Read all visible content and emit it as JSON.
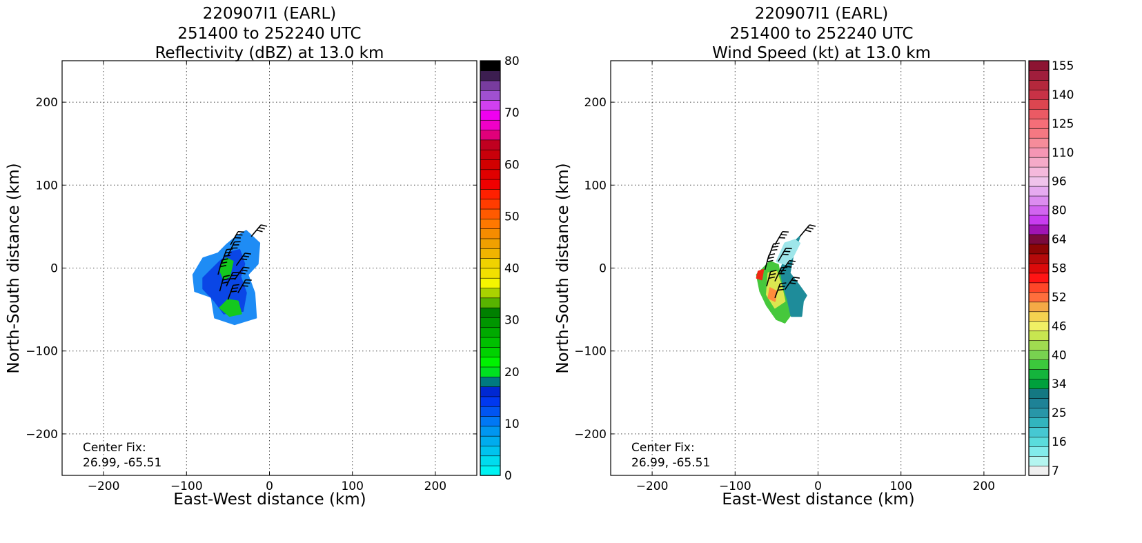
{
  "chart_data": [
    {
      "type": "heatmap",
      "title_lines": [
        "220907I1 (EARL)",
        "251400 to 252240 UTC",
        "Reflectivity (dBZ) at 13.0 km"
      ],
      "xlabel": "East-West distance (km)",
      "ylabel": "North-South distance (km)",
      "xlim": [
        -250,
        250
      ],
      "ylim": [
        -250,
        250
      ],
      "xticks": [
        -200,
        -100,
        0,
        100,
        200
      ],
      "yticks": [
        -200,
        -100,
        0,
        100,
        200
      ],
      "grid": true,
      "annotation": [
        "Center Fix:",
        "26.99, -65.51"
      ],
      "colorbar": {
        "min": 0,
        "max": 80,
        "tick_values": [
          0,
          10,
          20,
          30,
          40,
          50,
          60,
          70,
          80
        ],
        "colors": [
          "#00f2f2",
          "#00dcee",
          "#00c3ee",
          "#00acee",
          "#0096f0",
          "#0078f5",
          "#0055f2",
          "#0038f0",
          "#0028d2",
          "#007a80",
          "#00e020",
          "#00f200",
          "#00d200",
          "#00c000",
          "#00aa00",
          "#009600",
          "#008000",
          "#58b400",
          "#aad200",
          "#f5f500",
          "#f2e000",
          "#f0d200",
          "#f0b400",
          "#f0a000",
          "#f58c00",
          "#ff7800",
          "#ff5a00",
          "#ff3c00",
          "#ff2000",
          "#f00000",
          "#e00000",
          "#d20000",
          "#c8000a",
          "#c00020",
          "#e0007a",
          "#f000c8",
          "#f000f0",
          "#d040f0",
          "#a050d0",
          "#783c9e",
          "#3c1e50",
          "#000000"
        ]
      },
      "series": [
        {
          "name": "low",
          "color": "#1e8cf5",
          "points": [
            [
              -40,
              38
            ],
            [
              -28,
              45
            ],
            [
              -12,
              30
            ],
            [
              -14,
              5
            ],
            [
              -26,
              -8
            ],
            [
              -18,
              -30
            ],
            [
              -16,
              -60
            ],
            [
              -42,
              -68
            ],
            [
              -66,
              -60
            ],
            [
              -70,
              -35
            ],
            [
              -90,
              -28
            ],
            [
              -92,
              -8
            ],
            [
              -80,
              12
            ],
            [
              -62,
              18
            ],
            [
              -52,
              28
            ]
          ]
        },
        {
          "name": "mid",
          "color": "#0a46e6",
          "points": [
            [
              -45,
              20
            ],
            [
              -36,
              22
            ],
            [
              -30,
              5
            ],
            [
              -35,
              -10
            ],
            [
              -28,
              -30
            ],
            [
              -32,
              -52
            ],
            [
              -55,
              -55
            ],
            [
              -66,
              -40
            ],
            [
              -80,
              -25
            ],
            [
              -80,
              -12
            ],
            [
              -68,
              0
            ],
            [
              -60,
              8
            ]
          ]
        },
        {
          "name": "green",
          "color": "#14c81e",
          "points": [
            [
              -52,
              12
            ],
            [
              -44,
              8
            ],
            [
              -48,
              -10
            ],
            [
              -55,
              -14
            ],
            [
              -60,
              -2
            ],
            [
              -56,
              8
            ]
          ]
        },
        {
          "name": "green",
          "color": "#14c81e",
          "points": [
            [
              -50,
              -38
            ],
            [
              -38,
              -40
            ],
            [
              -34,
              -55
            ],
            [
              -48,
              -58
            ],
            [
              -60,
              -48
            ]
          ]
        }
      ],
      "barbs": [
        {
          "x": -47,
          "y": 28,
          "deg": 30
        },
        {
          "x": -50,
          "y": 15,
          "deg": 25
        },
        {
          "x": -58,
          "y": 5,
          "deg": 20
        },
        {
          "x": -40,
          "y": 3,
          "deg": 35
        },
        {
          "x": -62,
          "y": -8,
          "deg": 15
        },
        {
          "x": -42,
          "y": -14,
          "deg": 35
        },
        {
          "x": -52,
          "y": -22,
          "deg": 25
        },
        {
          "x": -60,
          "y": -28,
          "deg": 15
        },
        {
          "x": -38,
          "y": -30,
          "deg": 30
        },
        {
          "x": -50,
          "y": -38,
          "deg": 20
        },
        {
          "x": -22,
          "y": 38,
          "deg": 40
        }
      ]
    },
    {
      "type": "heatmap",
      "title_lines": [
        "220907I1 (EARL)",
        "251400 to 252240 UTC",
        "Wind Speed (kt) at 13.0 km"
      ],
      "xlabel": "East-West distance (km)",
      "ylabel": "North-South distance (km)",
      "xlim": [
        -250,
        250
      ],
      "ylim": [
        -250,
        250
      ],
      "xticks": [
        -200,
        -100,
        0,
        100,
        200
      ],
      "yticks": [
        -200,
        -100,
        0,
        100,
        200
      ],
      "grid": true,
      "annotation": [
        "Center Fix:",
        "26.99, -65.51"
      ],
      "colorbar": {
        "tick_labels": [
          "7",
          "16",
          "25",
          "34",
          "40",
          "46",
          "52",
          "58",
          "64",
          "80",
          "96",
          "110",
          "125",
          "140",
          "155"
        ],
        "tick_bins": [
          0,
          3,
          6,
          9,
          12,
          15,
          18,
          21,
          24,
          27,
          30,
          33,
          36,
          39,
          42
        ],
        "colors": [
          "#f0f0f0",
          "#b4f5f0",
          "#82ebeb",
          "#5adcdc",
          "#46c8d2",
          "#32b4be",
          "#2896a8",
          "#1e8296",
          "#147882",
          "#00a03c",
          "#14b43c",
          "#3cc83c",
          "#78d250",
          "#a0dc50",
          "#c8e650",
          "#f0f064",
          "#f5d250",
          "#f5aa46",
          "#ff6e3c",
          "#ff4628",
          "#ff1414",
          "#dc0a0a",
          "#b40a0a",
          "#8c0505",
          "#7a0a3c",
          "#a014b4",
          "#c83cf0",
          "#d264f0",
          "#dc8cf0",
          "#e6aaf0",
          "#f0c3eb",
          "#f5b9dc",
          "#f5aac8",
          "#f596b4",
          "#f58c9a",
          "#f57882",
          "#f56e78",
          "#eb5a64",
          "#dc4650",
          "#c83246",
          "#b4283c",
          "#a01e3c",
          "#8c1432"
        ]
      },
      "series": [
        {
          "name": "teal",
          "color": "#1e8c9a",
          "points": [
            [
              -28,
              32
            ],
            [
              -22,
              38
            ],
            [
              -30,
              15
            ],
            [
              -34,
              -6
            ],
            [
              -22,
              -22
            ],
            [
              -14,
              -33
            ],
            [
              -18,
              -40
            ],
            [
              -20,
              -58
            ],
            [
              -32,
              -58
            ],
            [
              -40,
              -48
            ],
            [
              -45,
              -30
            ],
            [
              -48,
              -10
            ],
            [
              -40,
              12
            ]
          ]
        },
        {
          "name": "cyan",
          "color": "#9ee6ea",
          "points": [
            [
              -40,
              30
            ],
            [
              -28,
              34
            ],
            [
              -22,
              30
            ],
            [
              -30,
              14
            ],
            [
              -38,
              4
            ],
            [
              -50,
              8
            ]
          ]
        },
        {
          "name": "green",
          "color": "#46c83c",
          "points": [
            [
              -58,
              8
            ],
            [
              -48,
              4
            ],
            [
              -44,
              -20
            ],
            [
              -38,
              -40
            ],
            [
              -34,
              -58
            ],
            [
              -40,
              -66
            ],
            [
              -50,
              -62
            ],
            [
              -62,
              -45
            ],
            [
              -70,
              -28
            ],
            [
              -74,
              -8
            ]
          ]
        },
        {
          "name": "yellow",
          "color": "#dce650",
          "points": [
            [
              -60,
              -6
            ],
            [
              -50,
              -4
            ],
            [
              -44,
              -22
            ],
            [
              -40,
              -40
            ],
            [
              -52,
              -48
            ],
            [
              -62,
              -32
            ]
          ]
        },
        {
          "name": "orange",
          "color": "#ff8c3c",
          "points": [
            [
              -58,
              -24
            ],
            [
              -50,
              -28
            ],
            [
              -52,
              -40
            ],
            [
              -60,
              -36
            ]
          ]
        },
        {
          "name": "red",
          "color": "#f02814",
          "points": [
            [
              -72,
              -4
            ],
            [
              -66,
              -2
            ],
            [
              -68,
              -14
            ],
            [
              -74,
              -12
            ]
          ]
        }
      ],
      "barbs": [
        {
          "x": -52,
          "y": 28,
          "deg": 30
        },
        {
          "x": -60,
          "y": 12,
          "deg": 20
        },
        {
          "x": -48,
          "y": 8,
          "deg": 30
        },
        {
          "x": -64,
          "y": -2,
          "deg": 15
        },
        {
          "x": -45,
          "y": -6,
          "deg": 35
        },
        {
          "x": -52,
          "y": -16,
          "deg": 25
        },
        {
          "x": -62,
          "y": -22,
          "deg": 15
        },
        {
          "x": -40,
          "y": -26,
          "deg": 35
        },
        {
          "x": -52,
          "y": -36,
          "deg": 20
        },
        {
          "x": -22,
          "y": 38,
          "deg": 40
        }
      ]
    }
  ]
}
